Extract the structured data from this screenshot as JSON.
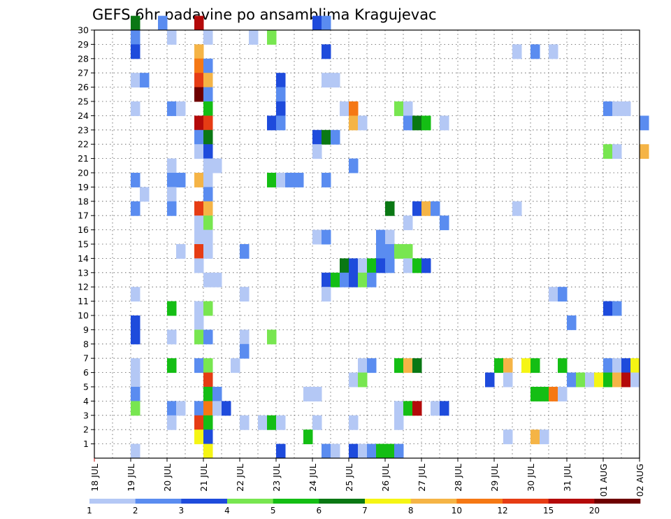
{
  "chart_data": {
    "type": "heatmap",
    "title": "GEFS 6hr padavine po ansamblima Kragujevac",
    "x_tick_labels": [
      "18 JUL",
      "19 JUL",
      "20 JUL",
      "21 JUL",
      "22 JUL",
      "23 JUL",
      "24 JUL",
      "25 JUL",
      "26 JUL",
      "27 JUL",
      "28 JUL",
      "29 JUL",
      "30 JUL",
      "31 JUL",
      "01 AUG",
      "02 AUG"
    ],
    "x_range_steps": [
      0,
      60
    ],
    "x_step_hours": 6,
    "y_tick_labels": [
      "1",
      "2",
      "3",
      "4",
      "5",
      "6",
      "7",
      "8",
      "9",
      "10",
      "11",
      "12",
      "13",
      "14",
      "15",
      "16",
      "17",
      "18",
      "19",
      "20",
      "21",
      "22",
      "23",
      "24",
      "25",
      "26",
      "27",
      "28",
      "29",
      "30"
    ],
    "y_range": [
      0,
      30
    ],
    "grid": "dotted",
    "color_scale": {
      "bins": [
        {
          "label": "1",
          "color": "#b4c8f5"
        },
        {
          "label": "2",
          "color": "#5a8cf0"
        },
        {
          "label": "3",
          "color": "#1e4bdc"
        },
        {
          "label": "4",
          "color": "#78e650"
        },
        {
          "label": "5",
          "color": "#14be14"
        },
        {
          "label": "6",
          "color": "#0a7814"
        },
        {
          "label": "7",
          "color": "#f5f514"
        },
        {
          "label": "8",
          "color": "#f5b446"
        },
        {
          "label": "10",
          "color": "#f57814"
        },
        {
          "label": "12",
          "color": "#e63c14"
        },
        {
          "label": "15",
          "color": "#b40a0a"
        },
        {
          "label": "20",
          "color": "#6e0000"
        }
      ],
      "legend_labels": [
        "1",
        "2",
        "3",
        "4",
        "5",
        "6",
        "7",
        "8",
        "10",
        "12",
        "15",
        "20"
      ]
    },
    "cells": [
      [
        4,
        30,
        5
      ],
      [
        7,
        30,
        1
      ],
      [
        11,
        30,
        10
      ],
      [
        24,
        30,
        2
      ],
      [
        25,
        30,
        1
      ],
      [
        4,
        29,
        1
      ],
      [
        8,
        29,
        0
      ],
      [
        12,
        29,
        0
      ],
      [
        17,
        29,
        0
      ],
      [
        19,
        29,
        3
      ],
      [
        4,
        28,
        2
      ],
      [
        11,
        28,
        7
      ],
      [
        25,
        28,
        2
      ],
      [
        46,
        28,
        0
      ],
      [
        48,
        28,
        1
      ],
      [
        50,
        28,
        0
      ],
      [
        11,
        27,
        8
      ],
      [
        11,
        27,
        8
      ],
      [
        12,
        27,
        1
      ],
      [
        4,
        26,
        0
      ],
      [
        5,
        26,
        1
      ],
      [
        11,
        26,
        9
      ],
      [
        12,
        26,
        7
      ],
      [
        20,
        26,
        2
      ],
      [
        25,
        26,
        0
      ],
      [
        26,
        26,
        0
      ],
      [
        11,
        25,
        11
      ],
      [
        12,
        25,
        1
      ],
      [
        20,
        25,
        1
      ],
      [
        4,
        24,
        0
      ],
      [
        8,
        24,
        1
      ],
      [
        9,
        24,
        0
      ],
      [
        12,
        24,
        4
      ],
      [
        20,
        24,
        2
      ],
      [
        27,
        24,
        0
      ],
      [
        28,
        24,
        8
      ],
      [
        33,
        24,
        3
      ],
      [
        34,
        24,
        0
      ],
      [
        56,
        24,
        1
      ],
      [
        57,
        24,
        0
      ],
      [
        58,
        24,
        0
      ],
      [
        11,
        23,
        10
      ],
      [
        12,
        23,
        9
      ],
      [
        19,
        23,
        2
      ],
      [
        20,
        23,
        1
      ],
      [
        28,
        23,
        7
      ],
      [
        29,
        23,
        0
      ],
      [
        34,
        23,
        1
      ],
      [
        35,
        23,
        5
      ],
      [
        36,
        23,
        4
      ],
      [
        38,
        23,
        0
      ],
      [
        60,
        23,
        1
      ],
      [
        11,
        22,
        1
      ],
      [
        12,
        22,
        5
      ],
      [
        24,
        22,
        2
      ],
      [
        25,
        22,
        5
      ],
      [
        26,
        22,
        1
      ],
      [
        11,
        21,
        0
      ],
      [
        12,
        21,
        2
      ],
      [
        24,
        21,
        0
      ],
      [
        56,
        21,
        3
      ],
      [
        57,
        21,
        0
      ],
      [
        60,
        21,
        7
      ],
      [
        8,
        20,
        0
      ],
      [
        12,
        20,
        0
      ],
      [
        13,
        20,
        0
      ],
      [
        28,
        20,
        1
      ],
      [
        4,
        19,
        1
      ],
      [
        8,
        19,
        1
      ],
      [
        9,
        19,
        1
      ],
      [
        11,
        19,
        7
      ],
      [
        12,
        19,
        0
      ],
      [
        19,
        19,
        4
      ],
      [
        20,
        19,
        0
      ],
      [
        21,
        19,
        1
      ],
      [
        22,
        19,
        1
      ],
      [
        25,
        19,
        1
      ],
      [
        5,
        18,
        0
      ],
      [
        8,
        18,
        0
      ],
      [
        12,
        18,
        1
      ],
      [
        4,
        17,
        1
      ],
      [
        8,
        17,
        1
      ],
      [
        11,
        17,
        9
      ],
      [
        12,
        17,
        7
      ],
      [
        32,
        17,
        5
      ],
      [
        35,
        17,
        2
      ],
      [
        36,
        17,
        7
      ],
      [
        37,
        17,
        1
      ],
      [
        46,
        17,
        0
      ],
      [
        11,
        16,
        0
      ],
      [
        12,
        16,
        3
      ],
      [
        34,
        16,
        0
      ],
      [
        38,
        16,
        1
      ],
      [
        11,
        15,
        0
      ],
      [
        12,
        15,
        0
      ],
      [
        24,
        15,
        0
      ],
      [
        25,
        15,
        1
      ],
      [
        31,
        15,
        1
      ],
      [
        32,
        15,
        0
      ],
      [
        9,
        14,
        0
      ],
      [
        11,
        14,
        9
      ],
      [
        12,
        14,
        0
      ],
      [
        16,
        14,
        1
      ],
      [
        31,
        14,
        1
      ],
      [
        32,
        14,
        1
      ],
      [
        33,
        14,
        3
      ],
      [
        34,
        14,
        3
      ],
      [
        11,
        13,
        0
      ],
      [
        27,
        13,
        5
      ],
      [
        28,
        13,
        2
      ],
      [
        29,
        13,
        0
      ],
      [
        30,
        13,
        4
      ],
      [
        31,
        13,
        2
      ],
      [
        32,
        13,
        1
      ],
      [
        34,
        13,
        0
      ],
      [
        35,
        13,
        4
      ],
      [
        36,
        13,
        2
      ],
      [
        12,
        12,
        0
      ],
      [
        13,
        12,
        0
      ],
      [
        25,
        12,
        2
      ],
      [
        26,
        12,
        4
      ],
      [
        27,
        12,
        1
      ],
      [
        28,
        12,
        2
      ],
      [
        29,
        12,
        3
      ],
      [
        30,
        12,
        1
      ],
      [
        4,
        11,
        0
      ],
      [
        16,
        11,
        0
      ],
      [
        25,
        11,
        0
      ],
      [
        50,
        11,
        0
      ],
      [
        51,
        11,
        1
      ],
      [
        8,
        10,
        4
      ],
      [
        11,
        10,
        0
      ],
      [
        12,
        10,
        3
      ],
      [
        56,
        10,
        2
      ],
      [
        57,
        10,
        1
      ],
      [
        4,
        9,
        2
      ],
      [
        11,
        9,
        0
      ],
      [
        52,
        9,
        1
      ],
      [
        4,
        8,
        2
      ],
      [
        8,
        8,
        0
      ],
      [
        11,
        8,
        3
      ],
      [
        12,
        8,
        1
      ],
      [
        16,
        8,
        0
      ],
      [
        19,
        8,
        3
      ],
      [
        16,
        7,
        1
      ],
      [
        4,
        6,
        0
      ],
      [
        8,
        6,
        4
      ],
      [
        11,
        6,
        1
      ],
      [
        12,
        6,
        3
      ],
      [
        15,
        6,
        0
      ],
      [
        29,
        6,
        0
      ],
      [
        30,
        6,
        1
      ],
      [
        33,
        6,
        4
      ],
      [
        34,
        6,
        7
      ],
      [
        35,
        6,
        5
      ],
      [
        44,
        6,
        4
      ],
      [
        45,
        6,
        7
      ],
      [
        47,
        6,
        6
      ],
      [
        48,
        6,
        4
      ],
      [
        51,
        6,
        4
      ],
      [
        56,
        6,
        1
      ],
      [
        57,
        6,
        0
      ],
      [
        58,
        6,
        2
      ],
      [
        59,
        6,
        6
      ],
      [
        4,
        5,
        0
      ],
      [
        12,
        5,
        9
      ],
      [
        28,
        5,
        0
      ],
      [
        29,
        5,
        3
      ],
      [
        43,
        5,
        2
      ],
      [
        45,
        5,
        0
      ],
      [
        52,
        5,
        1
      ],
      [
        53,
        5,
        3
      ],
      [
        54,
        5,
        0
      ],
      [
        55,
        5,
        6
      ],
      [
        56,
        5,
        4
      ],
      [
        57,
        5,
        7
      ],
      [
        58,
        5,
        10
      ],
      [
        59,
        5,
        0
      ],
      [
        4,
        4,
        1
      ],
      [
        12,
        4,
        4
      ],
      [
        13,
        4,
        1
      ],
      [
        23,
        4,
        0
      ],
      [
        24,
        4,
        0
      ],
      [
        48,
        4,
        4
      ],
      [
        49,
        4,
        4
      ],
      [
        50,
        4,
        8
      ],
      [
        51,
        4,
        0
      ],
      [
        4,
        3,
        3
      ],
      [
        8,
        3,
        1
      ],
      [
        9,
        3,
        0
      ],
      [
        11,
        3,
        1
      ],
      [
        12,
        3,
        8
      ],
      [
        13,
        3,
        0
      ],
      [
        14,
        3,
        2
      ],
      [
        33,
        3,
        0
      ],
      [
        34,
        3,
        4
      ],
      [
        35,
        3,
        10
      ],
      [
        37,
        3,
        0
      ],
      [
        38,
        3,
        2
      ],
      [
        8,
        2,
        0
      ],
      [
        11,
        2,
        9
      ],
      [
        12,
        2,
        4
      ],
      [
        16,
        2,
        0
      ],
      [
        18,
        2,
        0
      ],
      [
        19,
        2,
        4
      ],
      [
        20,
        2,
        0
      ],
      [
        24,
        2,
        0
      ],
      [
        28,
        2,
        0
      ],
      [
        33,
        2,
        0
      ],
      [
        11,
        1,
        6
      ],
      [
        12,
        1,
        2
      ],
      [
        23,
        1,
        4
      ],
      [
        45,
        1,
        0
      ],
      [
        48,
        1,
        7
      ],
      [
        49,
        1,
        0
      ],
      [
        4,
        0,
        0
      ],
      [
        12,
        0,
        6
      ],
      [
        20,
        0,
        2
      ],
      [
        25,
        0,
        1
      ],
      [
        26,
        0,
        0
      ],
      [
        28,
        0,
        2
      ],
      [
        29,
        0,
        0
      ],
      [
        30,
        0,
        1
      ],
      [
        31,
        0,
        4
      ],
      [
        32,
        0,
        4
      ],
      [
        33,
        0,
        1
      ]
    ]
  }
}
